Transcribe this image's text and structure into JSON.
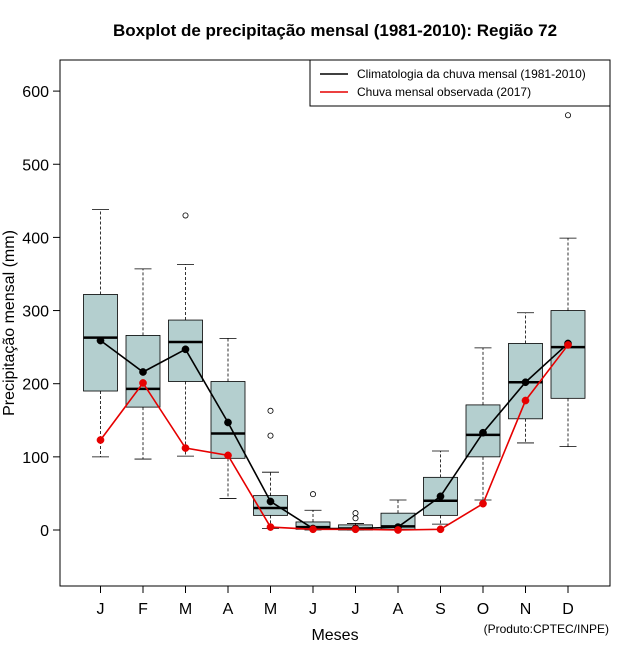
{
  "chart_data": {
    "type": "boxplot",
    "title": "Boxplot de precipitação mensal (1981-2010): Região 72",
    "xlabel": "Meses",
    "ylabel": "Precipitação mensal (mm)",
    "ylim": [
      -75,
      645
    ],
    "yticks": [
      0,
      100,
      200,
      300,
      400,
      500,
      600
    ],
    "categories": [
      "J",
      "F",
      "M",
      "A",
      "M",
      "J",
      "J",
      "A",
      "S",
      "O",
      "N",
      "D"
    ],
    "boxes": [
      {
        "min": 100,
        "q1": 190,
        "median": 263,
        "q3": 322,
        "max": 438,
        "outliers": []
      },
      {
        "min": 97,
        "q1": 168,
        "median": 193,
        "q3": 266,
        "max": 357,
        "outliers": []
      },
      {
        "min": 101,
        "q1": 203,
        "median": 257,
        "q3": 287,
        "max": 363,
        "outliers": [
          430
        ]
      },
      {
        "min": 43,
        "q1": 98,
        "median": 132,
        "q3": 203,
        "max": 262,
        "outliers": []
      },
      {
        "min": 2,
        "q1": 20,
        "median": 30,
        "q3": 47,
        "max": 79,
        "outliers": [
          129,
          163
        ]
      },
      {
        "min": 0,
        "q1": 1,
        "median": 4,
        "q3": 11,
        "max": 27,
        "outliers": [
          49
        ]
      },
      {
        "min": 0,
        "q1": 0,
        "median": 2,
        "q3": 7,
        "max": 9,
        "outliers": [
          16,
          23
        ]
      },
      {
        "min": 0,
        "q1": 1,
        "median": 5,
        "q3": 23,
        "max": 41,
        "outliers": []
      },
      {
        "min": 8,
        "q1": 20,
        "median": 40,
        "q3": 72,
        "max": 108,
        "outliers": []
      },
      {
        "min": 41,
        "q1": 100,
        "median": 130,
        "q3": 171,
        "max": 249,
        "outliers": []
      },
      {
        "min": 119,
        "q1": 152,
        "median": 202,
        "q3": 255,
        "max": 297,
        "outliers": []
      },
      {
        "min": 114,
        "q1": 180,
        "median": 250,
        "q3": 300,
        "max": 399,
        "outliers": [
          567
        ]
      }
    ],
    "series": [
      {
        "name": "Climatologia da chuva mensal (1981-2010)",
        "color": "#000000",
        "values": [
          259,
          216,
          247,
          147,
          39,
          2,
          2,
          4,
          46,
          133,
          202,
          255
        ]
      },
      {
        "name": "Chuva mensal observada (2017)",
        "color": "#e60000",
        "values": [
          123,
          201,
          112,
          102,
          4,
          1,
          1,
          0,
          1,
          36,
          177,
          253
        ]
      }
    ],
    "box_fill": "#b4cfcf",
    "legend_position": "top-right",
    "credit": "(Produto:CPTEC/INPE)"
  }
}
